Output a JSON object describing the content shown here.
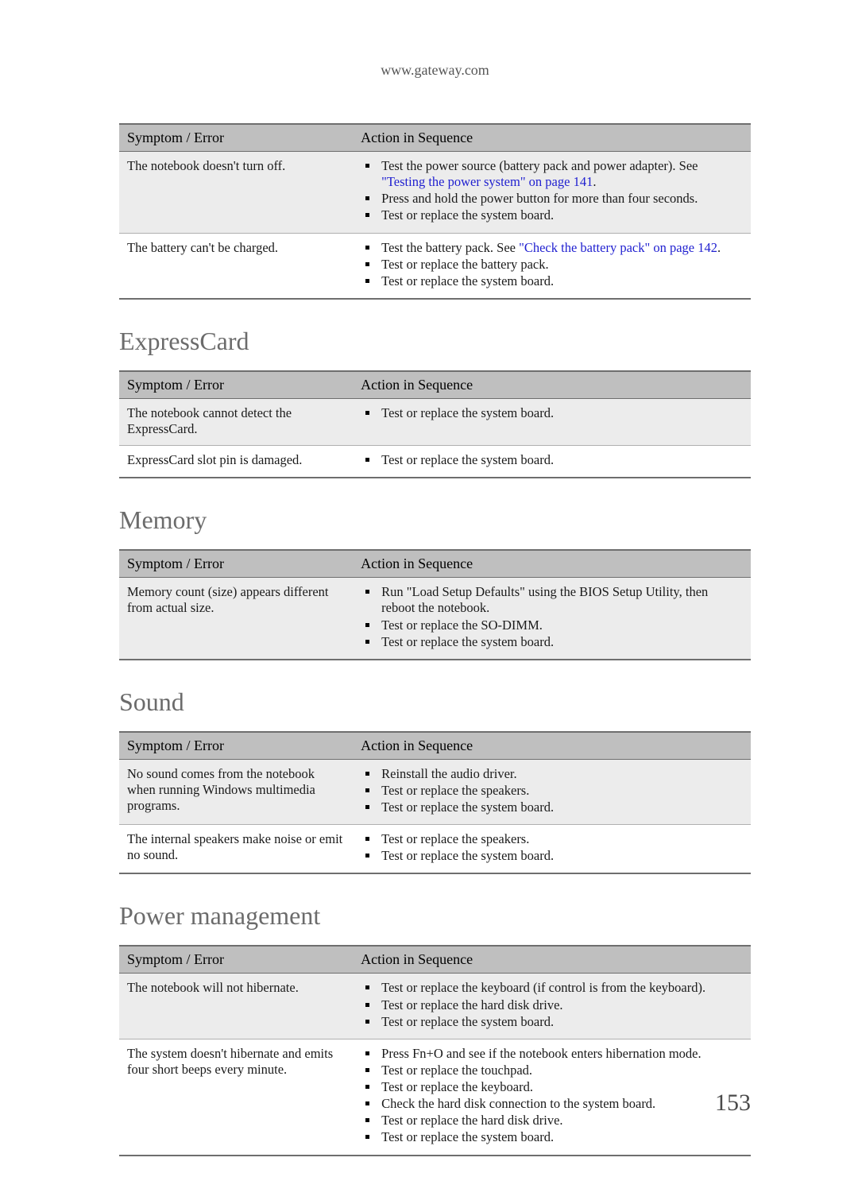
{
  "header_url": "www.gateway.com",
  "page_number": "153",
  "col_symptom_label": "Symptom / Error",
  "col_action_label": "Action in Sequence",
  "link_color": "#1f1fd0",
  "header_bg": "#bfbfbf",
  "shade_bg": "#ececec",
  "tables": [
    {
      "title": null,
      "rows": [
        {
          "shaded": true,
          "symptom": "The notebook doesn't turn off.",
          "actions": [
            {
              "pre": "Test the power source (battery pack and power adapter). See ",
              "link": "\"Testing the power system\" on page 141",
              "post": "."
            },
            {
              "pre": "Press and hold the power button for more than four seconds."
            },
            {
              "pre": "Test or replace the system board."
            }
          ]
        },
        {
          "shaded": false,
          "last": true,
          "symptom": "The battery can't be charged.",
          "actions": [
            {
              "pre": "Test the battery pack. See ",
              "link": "\"Check the battery pack\" on page 142",
              "post": "."
            },
            {
              "pre": "Test or replace the battery pack."
            },
            {
              "pre": "Test or replace the system board."
            }
          ]
        }
      ]
    },
    {
      "title": "ExpressCard",
      "rows": [
        {
          "shaded": true,
          "symptom": "The notebook cannot detect the ExpressCard.",
          "actions": [
            {
              "pre": "Test or replace the system board."
            }
          ]
        },
        {
          "shaded": false,
          "last": true,
          "symptom": "ExpressCard slot pin is damaged.",
          "actions": [
            {
              "pre": "Test or replace the system board."
            }
          ]
        }
      ]
    },
    {
      "title": "Memory",
      "rows": [
        {
          "shaded": true,
          "last": true,
          "symptom": "Memory count (size) appears different from actual size.",
          "actions": [
            {
              "pre": "Run \"Load Setup Defaults\" using the BIOS Setup Utility, then reboot the notebook."
            },
            {
              "pre": "Test or replace the SO-DIMM."
            },
            {
              "pre": "Test or replace the system board."
            }
          ]
        }
      ]
    },
    {
      "title": "Sound",
      "rows": [
        {
          "shaded": true,
          "symptom": "No sound comes from the notebook when running Windows multimedia programs.",
          "actions": [
            {
              "pre": "Reinstall the audio driver."
            },
            {
              "pre": "Test or replace the speakers."
            },
            {
              "pre": "Test or replace the system board."
            }
          ]
        },
        {
          "shaded": false,
          "last": true,
          "symptom": "The internal speakers make noise or emit no sound.",
          "actions": [
            {
              "pre": "Test or replace the speakers."
            },
            {
              "pre": "Test or replace the system board."
            }
          ]
        }
      ]
    },
    {
      "title": "Power management",
      "rows": [
        {
          "shaded": true,
          "symptom": "The notebook will not hibernate.",
          "actions": [
            {
              "pre": "Test or replace the keyboard (if control is from the keyboard)."
            },
            {
              "pre": "Test or replace the hard disk drive."
            },
            {
              "pre": "Test or replace the system board."
            }
          ]
        },
        {
          "shaded": false,
          "last": true,
          "symptom": "The system doesn't hibernate and emits four short beeps every minute.",
          "actions": [
            {
              "pre": "Press Fn+O and see if the notebook enters hibernation mode."
            },
            {
              "pre": "Test or replace the touchpad."
            },
            {
              "pre": "Test or replace the keyboard."
            },
            {
              "pre": "Check the hard disk connection to the system board."
            },
            {
              "pre": "Test or replace the hard disk drive."
            },
            {
              "pre": "Test or replace the system board."
            }
          ]
        }
      ]
    }
  ]
}
